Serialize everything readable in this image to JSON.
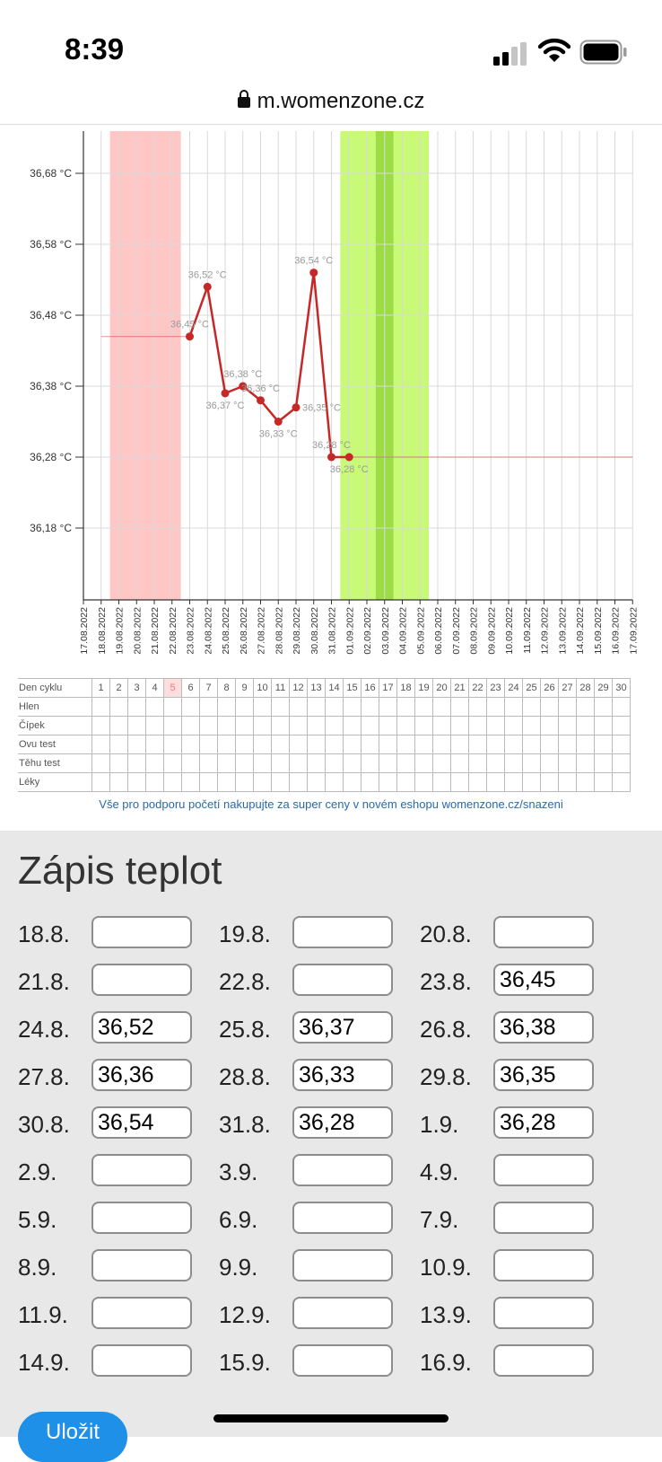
{
  "status_bar": {
    "time": "8:39"
  },
  "browser": {
    "url": "m.womenzone.cz"
  },
  "chart_data": {
    "type": "line",
    "y_tick_labels": [
      "36,68 °C",
      "36,58 °C",
      "36,48 °C",
      "36,38 °C",
      "36,28 °C",
      "36,18 °C"
    ],
    "y_ticks": [
      36.68,
      36.58,
      36.48,
      36.38,
      36.28,
      36.18
    ],
    "ylim": [
      36.09,
      36.74
    ],
    "dates": [
      "17.08.2022",
      "18.08.2022",
      "19.08.2022",
      "20.08.2022",
      "21.08.2022",
      "22.08.2022",
      "23.08.2022",
      "24.08.2022",
      "25.08.2022",
      "26.08.2022",
      "27.08.2022",
      "28.08.2022",
      "29.08.2022",
      "30.08.2022",
      "31.08.2022",
      "01.09.2022",
      "02.09.2022",
      "03.09.2022",
      "04.09.2022",
      "05.09.2022",
      "06.09.2022",
      "07.09.2022",
      "08.09.2022",
      "09.09.2022",
      "10.09.2022",
      "11.09.2022",
      "12.09.2022",
      "13.09.2022",
      "14.09.2022",
      "15.09.2022",
      "16.09.2022",
      "17.09.2022"
    ],
    "series": [
      {
        "points": [
          {
            "date": "23.08.2022",
            "value": 36.45,
            "label": "36,45 °C"
          },
          {
            "date": "24.08.2022",
            "value": 36.52,
            "label": "36,52 °C"
          },
          {
            "date": "25.08.2022",
            "value": 36.37,
            "label": "36,37 °C"
          },
          {
            "date": "26.08.2022",
            "value": 36.38,
            "label": "36,38 °C"
          },
          {
            "date": "27.08.2022",
            "value": 36.36,
            "label": "36,36 °C"
          },
          {
            "date": "28.08.2022",
            "value": 36.33,
            "label": "36,33 °C"
          },
          {
            "date": "29.08.2022",
            "value": 36.35,
            "label": "36,35 °C"
          },
          {
            "date": "30.08.2022",
            "value": 36.54,
            "label": "36,54 °C"
          },
          {
            "date": "31.08.2022",
            "value": 36.28,
            "label": "36,28 °C"
          },
          {
            "date": "01.09.2022",
            "value": 36.28,
            "label": "36,28 °C"
          }
        ],
        "color": "#c62828"
      }
    ],
    "baselines": [
      {
        "from": "18.08.2022",
        "to": "23.08.2022",
        "value": 36.45
      },
      {
        "from": "01.09.2022",
        "to": "17.09.2022",
        "value": 36.28
      }
    ],
    "bands": [
      {
        "from": "18.08.2022",
        "to": "22.08.2022",
        "color": "#ffc6c6"
      },
      {
        "from": "31.08.2022",
        "to": "05.09.2022",
        "color": "#c8fa78"
      },
      {
        "from": "02.09.2022",
        "to": "03.09.2022",
        "color": "#9cdd46"
      }
    ],
    "grid": true
  },
  "cycle_table": {
    "header_label": "Den cyklu",
    "days": [
      "1",
      "2",
      "3",
      "4",
      "5",
      "6",
      "7",
      "8",
      "9",
      "10",
      "11",
      "12",
      "13",
      "14",
      "15",
      "16",
      "17",
      "18",
      "19",
      "20",
      "21",
      "22",
      "23",
      "24",
      "25",
      "26",
      "27",
      "28",
      "29",
      "30"
    ],
    "highlight_day": "5",
    "rows": [
      "Hlen",
      "Čípek",
      "Ovu test",
      "Těhu test",
      "Léky"
    ]
  },
  "promo": {
    "text": "Vše pro podporu početí nakupujte za super ceny v novém eshopu womenzone.cz/snazeni"
  },
  "entry": {
    "title": "Zápis teplot",
    "rows": [
      [
        {
          "date": "18.8.",
          "value": ""
        },
        {
          "date": "19.8.",
          "value": ""
        },
        {
          "date": "20.8.",
          "value": ""
        }
      ],
      [
        {
          "date": "21.8.",
          "value": ""
        },
        {
          "date": "22.8.",
          "value": ""
        },
        {
          "date": "23.8.",
          "value": "36,45"
        }
      ],
      [
        {
          "date": "24.8.",
          "value": "36,52"
        },
        {
          "date": "25.8.",
          "value": "36,37"
        },
        {
          "date": "26.8.",
          "value": "36,38"
        }
      ],
      [
        {
          "date": "27.8.",
          "value": "36,36"
        },
        {
          "date": "28.8.",
          "value": "36,33"
        },
        {
          "date": "29.8.",
          "value": "36,35"
        }
      ],
      [
        {
          "date": "30.8.",
          "value": "36,54"
        },
        {
          "date": "31.8.",
          "value": "36,28"
        },
        {
          "date": "1.9.",
          "value": "36,28"
        }
      ],
      [
        {
          "date": "2.9.",
          "value": ""
        },
        {
          "date": "3.9.",
          "value": ""
        },
        {
          "date": "4.9.",
          "value": ""
        }
      ],
      [
        {
          "date": "5.9.",
          "value": ""
        },
        {
          "date": "6.9.",
          "value": ""
        },
        {
          "date": "7.9.",
          "value": ""
        }
      ],
      [
        {
          "date": "8.9.",
          "value": ""
        },
        {
          "date": "9.9.",
          "value": ""
        },
        {
          "date": "10.9.",
          "value": ""
        }
      ],
      [
        {
          "date": "11.9.",
          "value": ""
        },
        {
          "date": "12.9.",
          "value": ""
        },
        {
          "date": "13.9.",
          "value": ""
        }
      ],
      [
        {
          "date": "14.9.",
          "value": ""
        },
        {
          "date": "15.9.",
          "value": ""
        },
        {
          "date": "16.9.",
          "value": ""
        }
      ]
    ],
    "save_label": "Uložit"
  }
}
